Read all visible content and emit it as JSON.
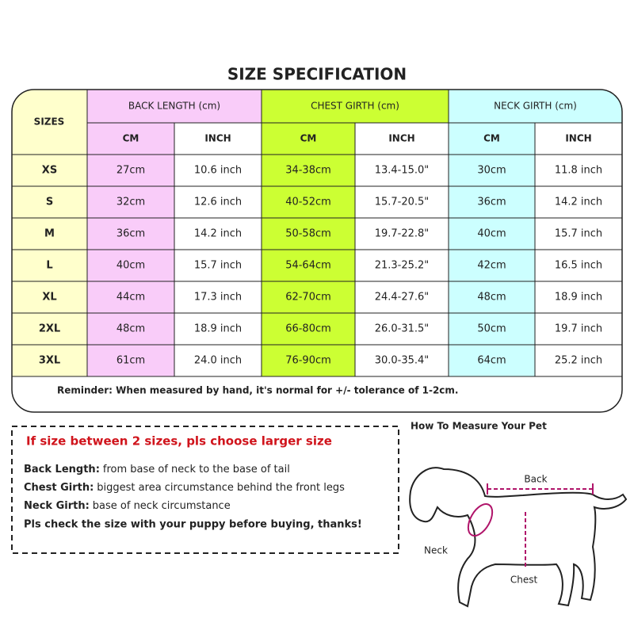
{
  "title": "SIZE SPECIFICATION",
  "table": {
    "header_sizes": "SIZES",
    "groups": [
      "BACK LENGTH (cm)",
      "CHEST GIRTH (cm)",
      "NECK GIRTH (cm)"
    ],
    "subheaders": [
      "CM",
      "INCH",
      "CM",
      "INCH",
      "CM",
      "INCH"
    ],
    "rows": [
      [
        "XS",
        "27cm",
        "10.6 inch",
        "34-38cm",
        "13.4-15.0\"",
        "30cm",
        "11.8 inch"
      ],
      [
        "S",
        "32cm",
        "12.6 inch",
        "40-52cm",
        "15.7-20.5\"",
        "36cm",
        "14.2 inch"
      ],
      [
        "M",
        "36cm",
        "14.2 inch",
        "50-58cm",
        "19.7-22.8\"",
        "40cm",
        "15.7 inch"
      ],
      [
        "L",
        "40cm",
        "15.7 inch",
        "54-64cm",
        "21.3-25.2\"",
        "42cm",
        "16.5 inch"
      ],
      [
        "XL",
        "44cm",
        "17.3 inch",
        "62-70cm",
        "24.4-27.6\"",
        "48cm",
        "18.9 inch"
      ],
      [
        "2XL",
        "48cm",
        "18.9 inch",
        "66-80cm",
        "26.0-31.5\"",
        "50cm",
        "19.7 inch"
      ],
      [
        "3XL",
        "61cm",
        "24.0 inch",
        "76-90cm",
        "30.0-35.4\"",
        "64cm",
        "25.2 inch"
      ]
    ]
  },
  "reminder": "Reminder: When measured by hand, it's normal for +/- tolerance of 1-2cm.",
  "notes": {
    "heading": "If size between  2 sizes, pls choose larger size",
    "items": [
      {
        "label": "Back Length:",
        "text": "from base of neck to the base of tail"
      },
      {
        "label": "Chest Girth:",
        "text": "biggest area circumstance behind the front legs"
      },
      {
        "label": "Neck Girth:",
        "text": "base of neck circumstance"
      }
    ],
    "final": "Pls check the size with your puppy before buying, thanks!"
  },
  "diagram": {
    "title": "How To Measure Your Pet",
    "labels": {
      "back": "Back",
      "neck": "Neck",
      "chest": "Chest"
    }
  }
}
